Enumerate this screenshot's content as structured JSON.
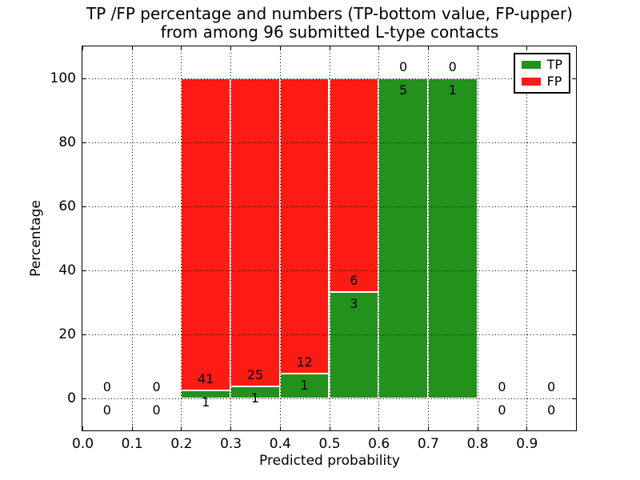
{
  "figure": {
    "title_line1": "TP /FP percentage and numbers (TP-bottom value, FP-upper)",
    "title_line2": "from among 96 submitted L-type contacts",
    "background": "#ffffff"
  },
  "axes": {
    "xlabel": "Predicted probability",
    "ylabel": "Percentage",
    "x_tick_labels": [
      "0.0",
      "0.1",
      "0.2",
      "0.3",
      "0.4",
      "0.5",
      "0.6",
      "0.7",
      "0.8",
      "0.9"
    ],
    "x_tick_values": [
      0.0,
      0.1,
      0.2,
      0.3,
      0.4,
      0.5,
      0.6,
      0.7,
      0.8,
      0.9
    ],
    "y_tick_labels": [
      "0",
      "20",
      "40",
      "60",
      "80",
      "100"
    ],
    "y_tick_values": [
      0,
      20,
      40,
      60,
      80,
      100
    ],
    "xlim": [
      0.0,
      1.0
    ],
    "ylim": [
      -10,
      110
    ],
    "grid": "dotted"
  },
  "legend": {
    "position": "upper-right",
    "items": [
      {
        "label": "TP",
        "color": "#22921c"
      },
      {
        "label": "FP",
        "color": "#fd1b14"
      }
    ]
  },
  "chart_data": {
    "type": "bar",
    "stacked": true,
    "total_contacts": 96,
    "bin_width": 0.1,
    "colors": {
      "tp": "#22921c",
      "fp": "#fd1b14",
      "bar_edge": "#ffffff"
    },
    "bins": [
      {
        "x_start": 0.0,
        "x_end": 0.1,
        "tp_count": 0,
        "fp_count": 0,
        "tp_pct": 0,
        "fp_pct": 0
      },
      {
        "x_start": 0.1,
        "x_end": 0.2,
        "tp_count": 0,
        "fp_count": 0,
        "tp_pct": 0,
        "fp_pct": 0
      },
      {
        "x_start": 0.2,
        "x_end": 0.3,
        "tp_count": 1,
        "fp_count": 41,
        "tp_pct": 2.38,
        "fp_pct": 97.62
      },
      {
        "x_start": 0.3,
        "x_end": 0.4,
        "tp_count": 1,
        "fp_count": 25,
        "tp_pct": 3.85,
        "fp_pct": 96.15
      },
      {
        "x_start": 0.4,
        "x_end": 0.5,
        "tp_count": 1,
        "fp_count": 12,
        "tp_pct": 7.69,
        "fp_pct": 92.31
      },
      {
        "x_start": 0.5,
        "x_end": 0.6,
        "tp_count": 3,
        "fp_count": 6,
        "tp_pct": 33.33,
        "fp_pct": 66.67
      },
      {
        "x_start": 0.6,
        "x_end": 0.7,
        "tp_count": 5,
        "fp_count": 0,
        "tp_pct": 100,
        "fp_pct": 0
      },
      {
        "x_start": 0.7,
        "x_end": 0.8,
        "tp_count": 1,
        "fp_count": 0,
        "tp_pct": 100,
        "fp_pct": 0
      },
      {
        "x_start": 0.8,
        "x_end": 0.9,
        "tp_count": 0,
        "fp_count": 0,
        "tp_pct": 0,
        "fp_pct": 0
      },
      {
        "x_start": 0.9,
        "x_end": 1.0,
        "tp_count": 0,
        "fp_count": 0,
        "tp_pct": 0,
        "fp_pct": 0
      }
    ]
  }
}
